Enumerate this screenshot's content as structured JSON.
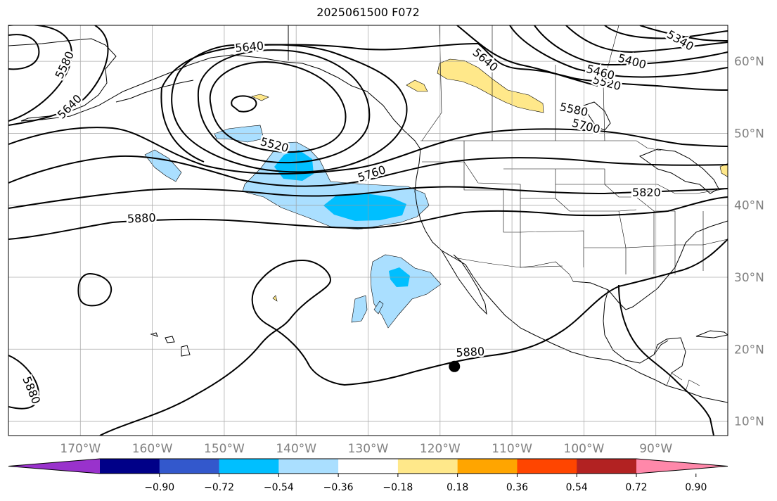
{
  "title": "2025061500 F072",
  "map": {
    "extent": {
      "lon_min": -180,
      "lon_max": -80,
      "lat_min": 8,
      "lat_max": 65
    },
    "projection": "PlateCarree",
    "gridlines": true,
    "lat_ticks": [
      {
        "value": 60,
        "label": "60°N"
      },
      {
        "value": 50,
        "label": "50°N"
      },
      {
        "value": 40,
        "label": "40°N"
      },
      {
        "value": 30,
        "label": "30°N"
      },
      {
        "value": 20,
        "label": "20°N"
      },
      {
        "value": 10,
        "label": "10°N"
      }
    ],
    "lon_ticks": [
      {
        "value": -170,
        "label": "170°W"
      },
      {
        "value": -160,
        "label": "160°W"
      },
      {
        "value": -150,
        "label": "150°W"
      },
      {
        "value": -140,
        "label": "140°W"
      },
      {
        "value": -130,
        "label": "130°W"
      },
      {
        "value": -120,
        "label": "120°W"
      },
      {
        "value": -110,
        "label": "110°W"
      },
      {
        "value": -100,
        "label": "100°W"
      },
      {
        "value": -90,
        "label": "90°W"
      }
    ],
    "contour_labels": [
      {
        "text": "5640",
        "lon": -146.5,
        "lat": 62.0,
        "rot": -5
      },
      {
        "text": "5580",
        "lon": -172.2,
        "lat": 59.5,
        "rot": -65
      },
      {
        "text": "5640",
        "lon": -171.5,
        "lat": 53.7,
        "rot": -45
      },
      {
        "text": "5520",
        "lon": -143.0,
        "lat": 48.4,
        "rot": 15
      },
      {
        "text": "5760",
        "lon": -129.5,
        "lat": 44.4,
        "rot": -18
      },
      {
        "text": "5880",
        "lon": -161.5,
        "lat": 38.2,
        "rot": -3
      },
      {
        "text": "5880",
        "lon": -176.8,
        "lat": 14.3,
        "rot": 68
      },
      {
        "text": "5880",
        "lon": -115.8,
        "lat": 19.6,
        "rot": -3
      },
      {
        "text": "5640",
        "lon": -113.7,
        "lat": 60.2,
        "rot": 40
      },
      {
        "text": "5700",
        "lon": -99.7,
        "lat": 51.0,
        "rot": 15
      },
      {
        "text": "5820",
        "lon": -91.3,
        "lat": 41.8,
        "rot": 0
      },
      {
        "text": "5580",
        "lon": -101.4,
        "lat": 53.3,
        "rot": 12
      },
      {
        "text": "5520",
        "lon": -96.8,
        "lat": 57.0,
        "rot": 15
      },
      {
        "text": "5460",
        "lon": -97.7,
        "lat": 58.5,
        "rot": 15
      },
      {
        "text": "5400",
        "lon": -93.3,
        "lat": 60.0,
        "rot": 15
      },
      {
        "text": "5340",
        "lon": -86.6,
        "lat": 62.9,
        "rot": 30
      }
    ],
    "marker": {
      "lon": -118.0,
      "lat": 17.6
    }
  },
  "colorbar": {
    "colors": [
      "#9932cc",
      "#000088",
      "#3358cc",
      "#00bfff",
      "#aadfff",
      "#ffffff",
      "#ffe88a",
      "#ffa500",
      "#ff4500",
      "#b22222",
      "#ff88aa"
    ],
    "labels": [
      "−0.90",
      "−0.72",
      "−0.54",
      "−0.36",
      "−0.18",
      "0.18",
      "0.36",
      "0.54",
      "0.72",
      "0.90"
    ]
  }
}
